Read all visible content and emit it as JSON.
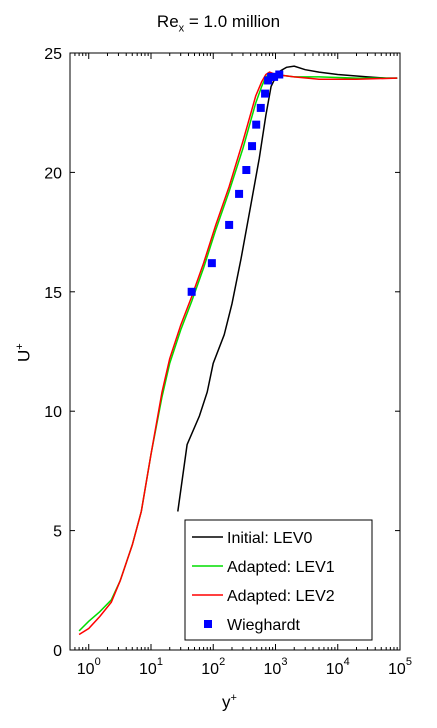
{
  "title_base": "Re",
  "title_sub": "x",
  "title_rest": " = 1.0 million",
  "xlabel_base": "y",
  "xlabel_sup": "+",
  "ylabel_base": "U",
  "ylabel_sup": "+",
  "chart_data": {
    "type": "line",
    "xscale": "log",
    "xlim": [
      0.5,
      100000
    ],
    "ylim": [
      0,
      25
    ],
    "x_ticks": [
      {
        "base": "10",
        "exp": "0"
      },
      {
        "base": "10",
        "exp": "1"
      },
      {
        "base": "10",
        "exp": "2"
      },
      {
        "base": "10",
        "exp": "3"
      },
      {
        "base": "10",
        "exp": "4"
      },
      {
        "base": "10",
        "exp": "5"
      }
    ],
    "y_ticks": [
      "0",
      "5",
      "10",
      "15",
      "20",
      "25"
    ],
    "grid": false,
    "legend_position": "bottom-right",
    "series": [
      {
        "name": "Initial: LEV0",
        "color": "#000000",
        "style": "line",
        "points": [
          [
            27,
            5.8
          ],
          [
            38,
            8.6
          ],
          [
            60,
            9.8
          ],
          [
            80,
            10.8
          ],
          [
            100,
            12.0
          ],
          [
            150,
            13.2
          ],
          [
            200,
            14.5
          ],
          [
            280,
            16.4
          ],
          [
            400,
            18.6
          ],
          [
            550,
            20.6
          ],
          [
            700,
            22.4
          ],
          [
            850,
            23.6
          ],
          [
            1100,
            24.2
          ],
          [
            1500,
            24.4
          ],
          [
            2000,
            24.45
          ],
          [
            3000,
            24.3
          ],
          [
            5000,
            24.2
          ],
          [
            10000,
            24.1
          ],
          [
            30000,
            24.0
          ],
          [
            60000,
            23.95
          ],
          [
            90000,
            23.95
          ]
        ]
      },
      {
        "name": "Adapted: LEV1",
        "color": "#00dd00",
        "style": "line",
        "points": [
          [
            0.7,
            0.8
          ],
          [
            1.0,
            1.2
          ],
          [
            1.5,
            1.6
          ],
          [
            2.3,
            2.1
          ],
          [
            3.2,
            2.9
          ],
          [
            5,
            4.4
          ],
          [
            7,
            5.8
          ],
          [
            10,
            8.2
          ],
          [
            15,
            10.6
          ],
          [
            20,
            12.0
          ],
          [
            30,
            13.4
          ],
          [
            45,
            14.6
          ],
          [
            70,
            16.0
          ],
          [
            110,
            17.6
          ],
          [
            180,
            19.2
          ],
          [
            300,
            21.0
          ],
          [
            480,
            22.9
          ],
          [
            600,
            23.6
          ],
          [
            700,
            24.0
          ],
          [
            800,
            24.1
          ],
          [
            1000,
            24.1
          ],
          [
            2000,
            24.0
          ],
          [
            5000,
            24.0
          ],
          [
            20000,
            23.95
          ],
          [
            90000,
            23.95
          ]
        ]
      },
      {
        "name": "Adapted: LEV2",
        "color": "#ff0000",
        "style": "line",
        "points": [
          [
            0.7,
            0.65
          ],
          [
            1.0,
            0.9
          ],
          [
            1.5,
            1.4
          ],
          [
            2.3,
            2.0
          ],
          [
            3.2,
            2.9
          ],
          [
            5,
            4.4
          ],
          [
            7,
            5.8
          ],
          [
            10,
            8.2
          ],
          [
            15,
            10.8
          ],
          [
            20,
            12.2
          ],
          [
            30,
            13.6
          ],
          [
            45,
            14.8
          ],
          [
            70,
            16.2
          ],
          [
            110,
            17.8
          ],
          [
            180,
            19.4
          ],
          [
            300,
            21.3
          ],
          [
            480,
            23.2
          ],
          [
            600,
            23.8
          ],
          [
            700,
            24.1
          ],
          [
            800,
            24.2
          ],
          [
            1000,
            24.1
          ],
          [
            2000,
            24.0
          ],
          [
            5000,
            23.9
          ],
          [
            20000,
            23.9
          ],
          [
            90000,
            23.95
          ]
        ]
      },
      {
        "name": "Wieghardt",
        "color": "#0000ff",
        "style": "marker",
        "points": [
          [
            45,
            15.0
          ],
          [
            95,
            16.2
          ],
          [
            180,
            17.8
          ],
          [
            260,
            19.1
          ],
          [
            340,
            20.1
          ],
          [
            420,
            21.1
          ],
          [
            490,
            22.0
          ],
          [
            580,
            22.7
          ],
          [
            680,
            23.3
          ],
          [
            760,
            23.85
          ],
          [
            850,
            24.0
          ],
          [
            950,
            24.0
          ],
          [
            1150,
            24.1
          ]
        ]
      }
    ]
  }
}
